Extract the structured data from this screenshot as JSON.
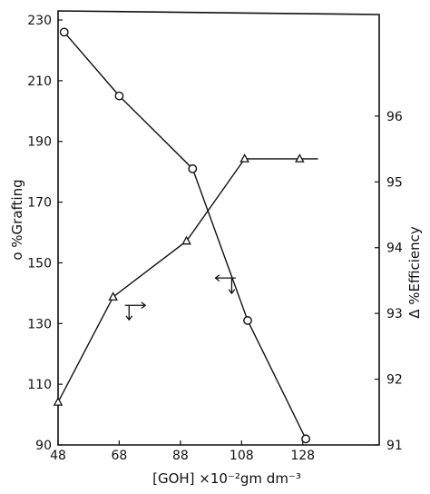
{
  "chart_data": {
    "type": "line",
    "title": "",
    "xlabel": "[GOH] ×10⁻²gm dm⁻³",
    "ylabel_left": "o %Grafting",
    "ylabel_right": "Δ %Efficiency",
    "x_ticks": [
      48,
      68,
      88,
      108,
      128
    ],
    "y_left_ticks": [
      90,
      110,
      130,
      150,
      170,
      190,
      210,
      230
    ],
    "y_right_ticks": [
      91,
      92,
      93,
      94,
      95,
      96
    ],
    "xlim": [
      48,
      153
    ],
    "ylim_left": [
      90,
      233
    ],
    "ylim_right": [
      91,
      97.6
    ],
    "series": [
      {
        "marker": "circle",
        "axis": "left",
        "x": [
          50,
          68,
          92,
          110,
          129
        ],
        "y": [
          226,
          205,
          181,
          131,
          92
        ]
      },
      {
        "marker": "triangle",
        "axis": "right",
        "x": [
          48,
          66,
          90,
          109,
          127
        ],
        "y": [
          91.65,
          93.25,
          94.1,
          95.35,
          95.35
        ],
        "tail_to_x": 133
      }
    ],
    "annotations": [
      {
        "x": 73,
        "y_left": 136,
        "direction": "right"
      },
      {
        "x": 103,
        "y_left": 145,
        "direction": "left"
      }
    ]
  }
}
